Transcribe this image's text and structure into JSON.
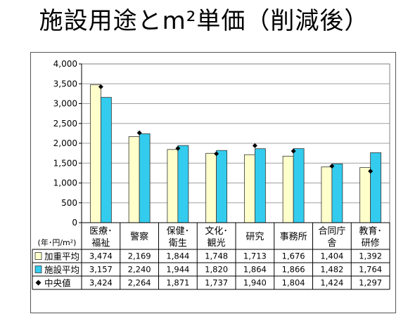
{
  "title": "施設用途とm²単価（削減後）",
  "chart_data": {
    "type": "bar",
    "title": "施設用途とm²単価（削減後）",
    "unit_label": "(年･円/m²)",
    "categories": [
      [
        "医療･",
        "福祉"
      ],
      [
        "警察"
      ],
      [
        "保健･",
        "衛生"
      ],
      [
        "文化･",
        "観光"
      ],
      [
        "研究"
      ],
      [
        "事務所"
      ],
      [
        "合同庁",
        "舎"
      ],
      [
        "教育･",
        "研修"
      ]
    ],
    "ylim": [
      0,
      4000
    ],
    "yticks": [
      0,
      500,
      1000,
      1500,
      2000,
      2500,
      3000,
      3500,
      4000
    ],
    "ytick_labels": [
      "0",
      "500",
      "1,000",
      "1,500",
      "2,000",
      "2,500",
      "3,000",
      "3,500",
      "4,000"
    ],
    "grid": true,
    "series": [
      {
        "name": "加重平均",
        "kind": "bar",
        "color": "#ffffcc",
        "values": [
          3474,
          2169,
          1844,
          1748,
          1713,
          1676,
          1404,
          1392
        ],
        "labels": [
          "3,474",
          "2,169",
          "1,844",
          "1,748",
          "1,713",
          "1,676",
          "1,404",
          "1,392"
        ]
      },
      {
        "name": "施設平均",
        "kind": "bar",
        "color": "#33ccee",
        "values": [
          3157,
          2240,
          1944,
          1820,
          1864,
          1866,
          1482,
          1764
        ],
        "labels": [
          "3,157",
          "2,240",
          "1,944",
          "1,820",
          "1,864",
          "1,866",
          "1,482",
          "1,764"
        ]
      },
      {
        "name": "中央値",
        "kind": "marker",
        "color": "#000000",
        "values": [
          3424,
          2264,
          1871,
          1737,
          1940,
          1804,
          1424,
          1297
        ],
        "labels": [
          "3,424",
          "2,264",
          "1,871",
          "1,737",
          "1,940",
          "1,804",
          "1,424",
          "1,297"
        ]
      }
    ]
  }
}
